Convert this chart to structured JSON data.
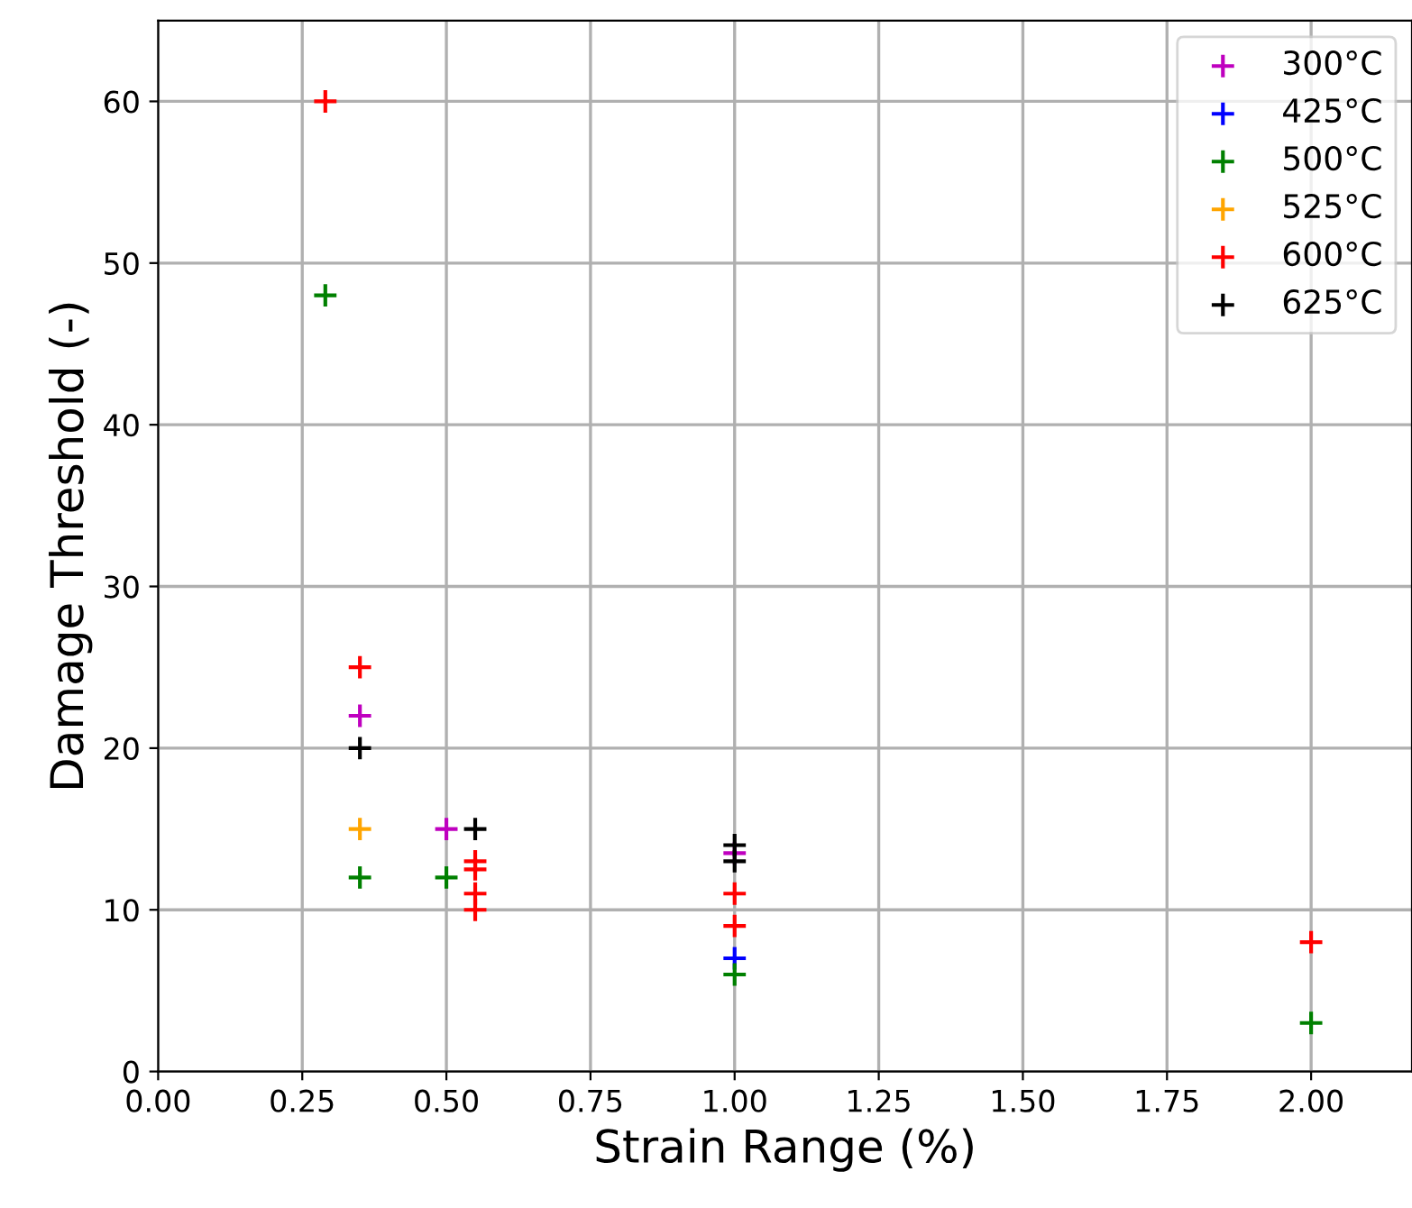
{
  "chart_data": {
    "type": "scatter",
    "xlabel": "Strain Range (%)",
    "ylabel": "Damage Threshold (-)",
    "xlim": [
      0,
      2.175
    ],
    "ylim": [
      0,
      65
    ],
    "xticks": [
      {
        "value": 0,
        "label": "0.00"
      },
      {
        "value": 0.25,
        "label": "0.25"
      },
      {
        "value": 0.5,
        "label": "0.50"
      },
      {
        "value": 0.75,
        "label": "0.75"
      },
      {
        "value": 1,
        "label": "1.00"
      },
      {
        "value": 1.25,
        "label": "1.25"
      },
      {
        "value": 1.5,
        "label": "1.50"
      },
      {
        "value": 1.75,
        "label": "1.75"
      },
      {
        "value": 2,
        "label": "2.00"
      }
    ],
    "yticks": [
      0,
      10,
      20,
      30,
      40,
      50,
      60
    ],
    "grid": true,
    "legend": "top right",
    "marker": "cross",
    "series": [
      {
        "name": "300°C",
        "color": "#bf00bf",
        "x": [
          0.35,
          0.5,
          1.0
        ],
        "values": [
          22,
          15,
          13.5
        ]
      },
      {
        "name": "425°C",
        "color": "#0000ff",
        "x": [
          1.0
        ],
        "values": [
          7
        ]
      },
      {
        "name": "500°C",
        "color": "#008000",
        "x": [
          0.29,
          0.35,
          0.5,
          1.0,
          2.0
        ],
        "values": [
          48,
          12,
          12,
          6,
          3
        ]
      },
      {
        "name": "525°C",
        "color": "#ffa500",
        "x": [
          0.35
        ],
        "values": [
          15
        ]
      },
      {
        "name": "600°C",
        "color": "#ff0000",
        "x": [
          0.29,
          0.35,
          0.55,
          0.55,
          0.55,
          0.55,
          1.0,
          1.0,
          2.0
        ],
        "values": [
          60,
          25,
          13,
          12.5,
          11,
          10,
          11,
          9,
          8
        ]
      },
      {
        "name": "625°C",
        "color": "#000000",
        "x": [
          0.35,
          0.55,
          1.0,
          1.0
        ],
        "values": [
          20,
          15,
          14,
          13
        ]
      }
    ]
  }
}
